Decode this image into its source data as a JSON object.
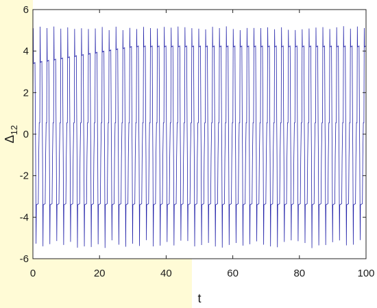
{
  "chart_data": {
    "type": "line",
    "title": "",
    "xlabel": "t",
    "ylabel_main": "Δ",
    "ylabel_sub": "12",
    "xlim": [
      0,
      100
    ],
    "ylim": [
      -6,
      6
    ],
    "xticks": [
      0,
      20,
      40,
      60,
      80,
      100
    ],
    "yticks": [
      -6,
      -4,
      -2,
      0,
      2,
      4,
      6
    ],
    "xtick_labels": [
      "0",
      "20",
      "40",
      "60",
      "80",
      "100"
    ],
    "ytick_labels": [
      "-6",
      "-4",
      "-2",
      "0",
      "2",
      "4",
      "6"
    ],
    "grid": false,
    "legend": "none",
    "series": [
      {
        "color": "#1f1fa8",
        "shape": "oscillation with sharp spikes near ±5 and plateaus near ±3.5, shifting to ±4 then with mid-levels near 0.5 and -1",
        "t_start": 0,
        "t_end": 100,
        "period": 2.07,
        "peak_max": 5.2,
        "peak_min": -5.5,
        "upper_plateau_start": 3.4,
        "upper_plateau_end": 4.2,
        "lower_plateau": -3.4,
        "mid_high": 0.55,
        "mid_low": -1.15
      }
    ],
    "colors": {
      "line": "#1f1fa8",
      "axes": "#202020",
      "background_tint": "#fffbd6"
    }
  }
}
